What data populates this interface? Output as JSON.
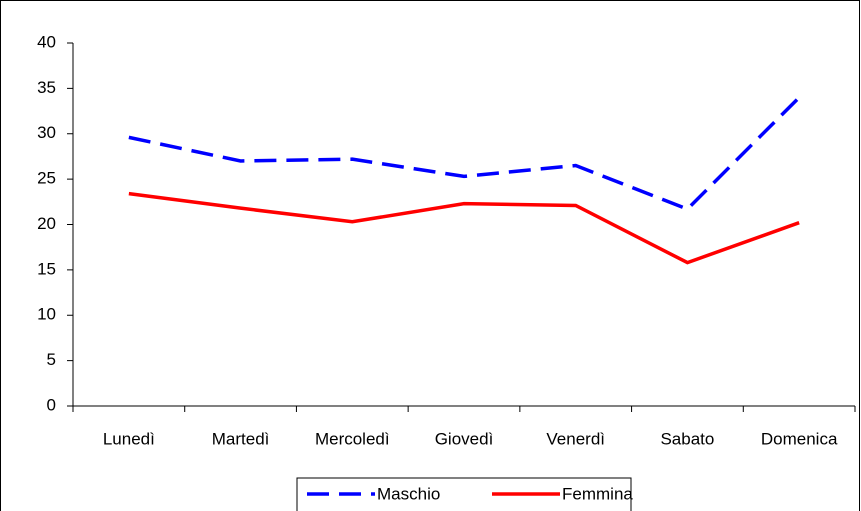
{
  "chart_data": {
    "type": "line",
    "categories": [
      "Lunedì",
      "Martedì",
      "Mercoledì",
      "Giovedì",
      "Venerdì",
      "Sabato",
      "Domenica"
    ],
    "series": [
      {
        "name": "Maschio",
        "color": "#0000ff",
        "dashed": true,
        "values": [
          29.6,
          27,
          27.2,
          25.3,
          26.5,
          21.7,
          34
        ]
      },
      {
        "name": "Femmina",
        "color": "#ff0000",
        "dashed": false,
        "values": [
          23.4,
          21.8,
          20.3,
          22.3,
          22.1,
          15.8,
          20.2
        ]
      }
    ],
    "ylim": [
      0,
      40
    ],
    "yticks": [
      0,
      5,
      10,
      15,
      20,
      25,
      30,
      35,
      40
    ],
    "grid": false,
    "legend": "bottom"
  }
}
